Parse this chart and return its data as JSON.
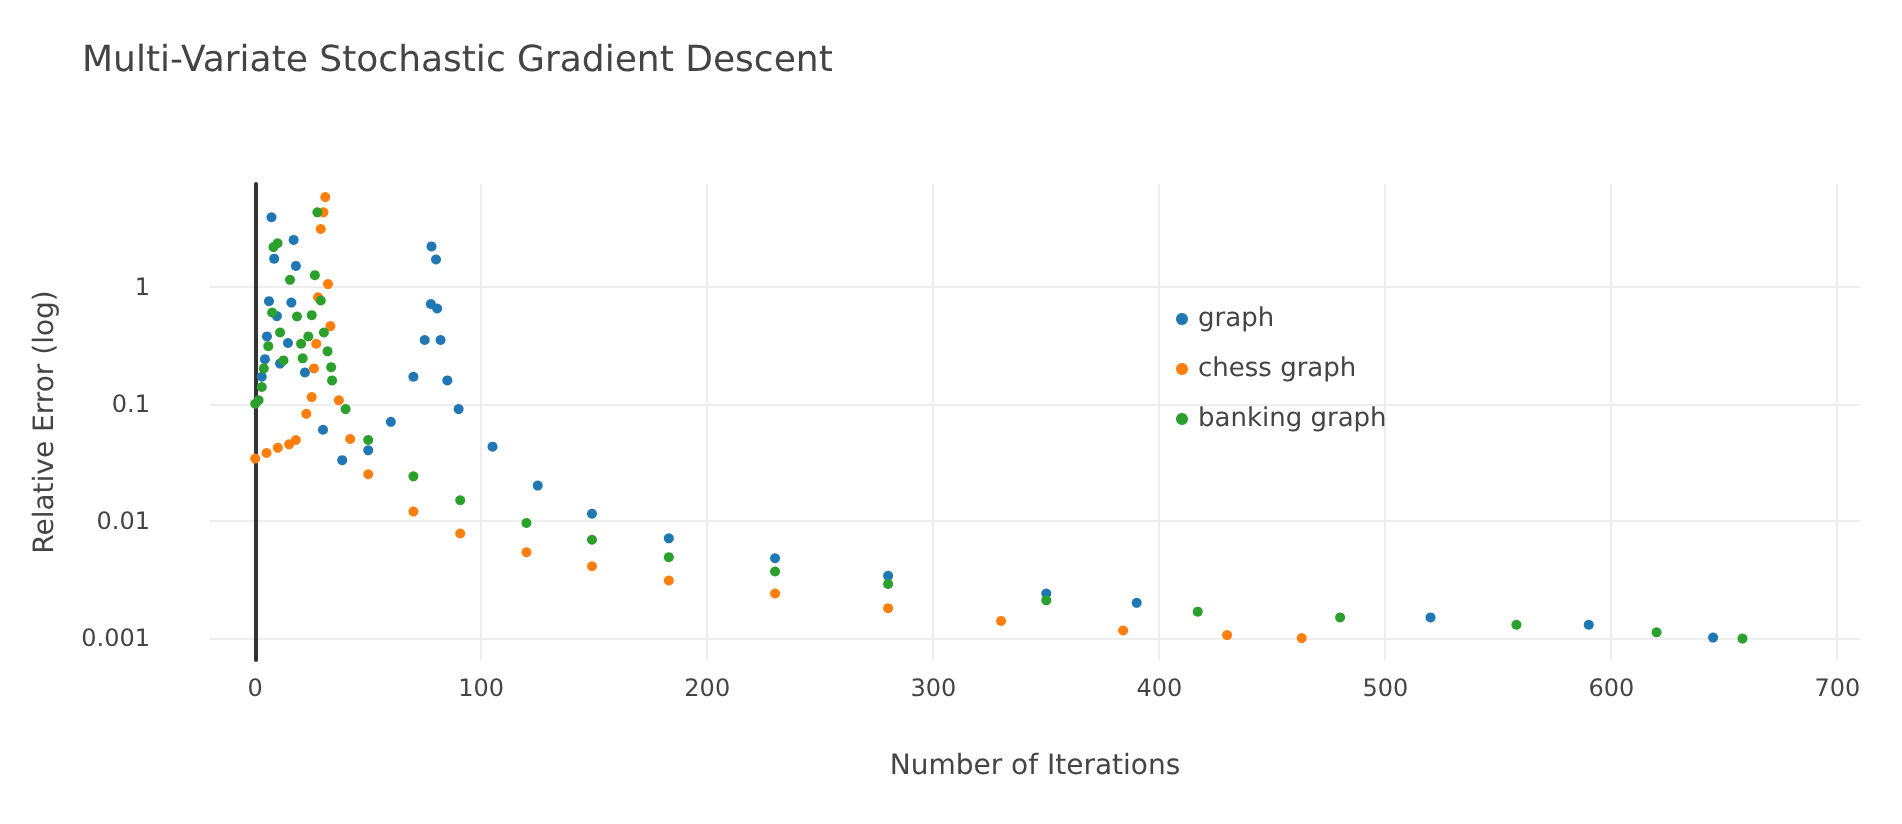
{
  "chart_data": {
    "type": "scatter",
    "title": "Multi-Variate Stochastic Gradient Descent",
    "xlabel": "Number of Iterations",
    "ylabel": "Relative Error (log)",
    "xlim": [
      -20,
      710
    ],
    "ylim": [
      0.00065,
      7.5
    ],
    "xticks": [
      0,
      100,
      200,
      300,
      400,
      500,
      600,
      700
    ],
    "yticks": [
      0.001,
      0.01,
      0.1,
      1
    ],
    "log": "y",
    "grid": true,
    "legend": "top right",
    "marker": "circle",
    "series": [
      {
        "name": "graph",
        "color": "#1f77b4",
        "x": [
          2.9,
          4.3,
          5.2,
          6.1,
          7.2,
          8.4,
          9.6,
          11,
          14.5,
          16,
          17,
          18,
          22,
          30,
          38.5,
          50,
          60,
          70,
          75,
          77.7,
          78,
          80,
          80.5,
          82,
          85,
          90,
          105,
          125,
          149,
          183,
          230,
          280,
          350,
          390,
          520,
          590,
          645
        ],
        "values": [
          0.17,
          0.24,
          0.375,
          0.75,
          3.9,
          1.73,
          0.56,
          0.22,
          0.33,
          0.73,
          2.5,
          1.5,
          0.185,
          0.06,
          0.033,
          0.04,
          0.07,
          0.17,
          0.35,
          0.71,
          2.2,
          1.7,
          0.65,
          0.35,
          0.158,
          0.09,
          0.043,
          0.02,
          0.0115,
          0.0071,
          0.0048,
          0.0034,
          0.0024,
          0.002,
          0.0015,
          0.0013,
          0.00101
        ]
      },
      {
        "name": "chess graph",
        "color": "#ff7f0e",
        "x": [
          0,
          5,
          10,
          15,
          18,
          22.6,
          25,
          26,
          27,
          27.8,
          29,
          30.2,
          31,
          32.2,
          33.3,
          37,
          42,
          50,
          70,
          90.7,
          120,
          149,
          183,
          230,
          280,
          330,
          384,
          430,
          463
        ],
        "values": [
          0.034,
          0.038,
          0.042,
          0.045,
          0.049,
          0.082,
          0.114,
          0.2,
          0.325,
          0.81,
          3.1,
          4.3,
          5.8,
          1.05,
          0.46,
          0.107,
          0.05,
          0.025,
          0.012,
          0.0078,
          0.0054,
          0.0041,
          0.0031,
          0.0024,
          0.0018,
          0.0014,
          0.00116,
          0.00106,
          0.001
        ]
      },
      {
        "name": "banking graph",
        "color": "#2ca02c",
        "x": [
          0,
          1.5,
          2.9,
          3.8,
          5.8,
          7.5,
          8.1,
          9.9,
          11,
          12.5,
          15.4,
          18.5,
          20.3,
          21,
          23.5,
          25,
          26.4,
          27.5,
          29,
          30.4,
          32,
          33.6,
          34,
          40,
          50,
          70,
          90.7,
          120,
          149,
          183,
          230,
          280,
          350,
          417,
          480,
          558,
          620,
          658
        ],
        "values": [
          0.1,
          0.107,
          0.139,
          0.2,
          0.31,
          0.6,
          2.17,
          2.34,
          0.405,
          0.234,
          1.14,
          0.555,
          0.325,
          0.244,
          0.375,
          0.57,
          1.25,
          4.3,
          0.76,
          0.405,
          0.28,
          0.205,
          0.158,
          0.09,
          0.049,
          0.024,
          0.015,
          0.0096,
          0.0069,
          0.0049,
          0.0037,
          0.0029,
          0.0021,
          0.00168,
          0.0015,
          0.0013,
          0.00112,
          0.00099
        ]
      }
    ]
  }
}
